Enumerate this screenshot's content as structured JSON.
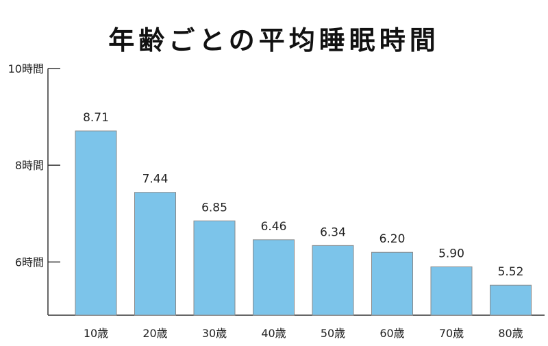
{
  "colors": {
    "bar_fill": "#7cc4ea",
    "bar_stroke": "#8a8a8a",
    "axis": "#333333",
    "text": "#222222"
  },
  "chart_data": {
    "type": "bar",
    "title": "年齢ごとの平均睡眠時間",
    "categories": [
      "10歳",
      "20歳",
      "30歳",
      "40歳",
      "50歳",
      "60歳",
      "70歳",
      "80歳"
    ],
    "values": [
      8.71,
      7.44,
      6.85,
      6.46,
      6.34,
      6.2,
      5.9,
      5.52
    ],
    "value_labels": [
      "8.71",
      "7.44",
      "6.85",
      "6.46",
      "6.34",
      "6.20",
      "5.90",
      "5.52"
    ],
    "y_ticks": [
      {
        "value": 6,
        "label": "6時間"
      },
      {
        "value": 8,
        "label": "8時間"
      },
      {
        "value": 10,
        "label": "10時間"
      }
    ],
    "ylim": [
      4.9,
      10
    ],
    "xlabel": "",
    "ylabel": "",
    "grid": false,
    "legend": "none"
  }
}
